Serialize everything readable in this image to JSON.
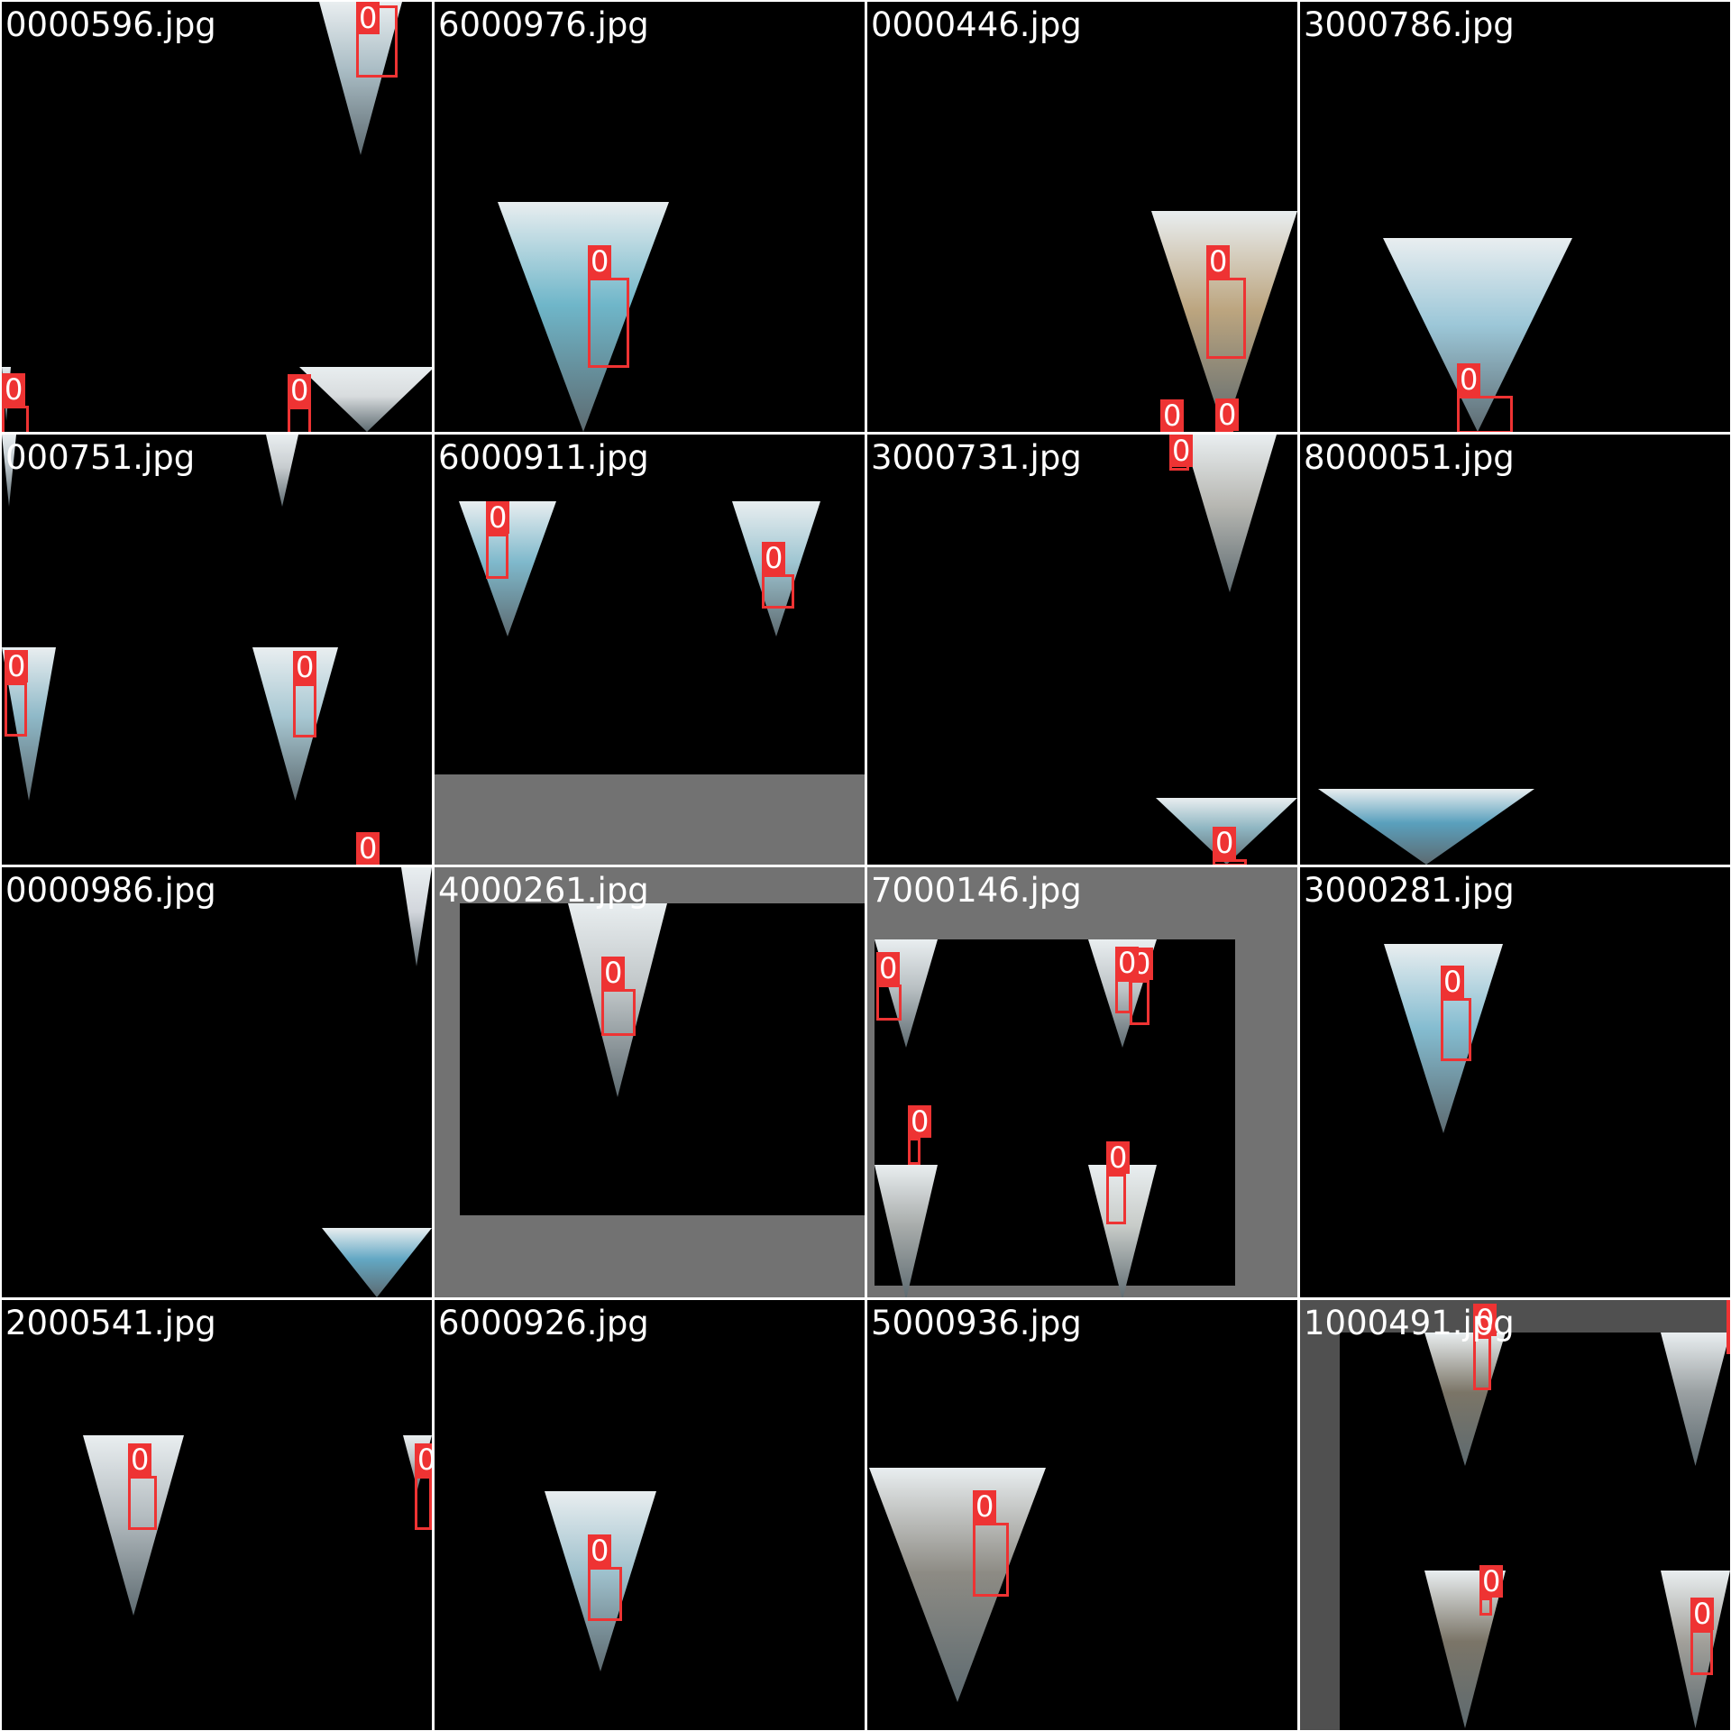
{
  "detection_class_label": "0",
  "colors": {
    "box": "#ee3333",
    "label_text": "#ffffff",
    "pad_gray": "#727272",
    "pad_dark": "#505050",
    "grid_line": "#ffffff"
  },
  "tiles": [
    {
      "filename": "0000596.jpg",
      "box_labels": [
        "0",
        "0",
        "0"
      ]
    },
    {
      "filename": "6000976.jpg",
      "box_labels": [
        "0"
      ]
    },
    {
      "filename": "0000446.jpg",
      "box_labels": [
        "0",
        "0",
        "0"
      ]
    },
    {
      "filename": "3000786.jpg",
      "box_labels": [
        "0"
      ]
    },
    {
      "filename": "000751.jpg",
      "box_labels": [
        "0",
        "0",
        "0"
      ]
    },
    {
      "filename": "6000911.jpg",
      "box_labels": [
        "0",
        "0"
      ]
    },
    {
      "filename": "3000731.jpg",
      "box_labels": [
        "0"
      ]
    },
    {
      "filename": "8000051.jpg",
      "box_labels": []
    },
    {
      "filename": "0000986.jpg",
      "box_labels": []
    },
    {
      "filename": "4000261.jpg",
      "box_labels": [
        "0"
      ]
    },
    {
      "filename": "7000146.jpg",
      "box_labels": [
        "0",
        "0",
        "0",
        "0",
        "0",
        "0"
      ]
    },
    {
      "filename": "3000281.jpg",
      "box_labels": [
        "0"
      ]
    },
    {
      "filename": "2000541.jpg",
      "box_labels": [
        "0",
        "0"
      ]
    },
    {
      "filename": "6000926.jpg",
      "box_labels": [
        "0"
      ]
    },
    {
      "filename": "5000936.jpg",
      "box_labels": [
        "0"
      ]
    },
    {
      "filename": "1000491.jpg",
      "box_labels": [
        "0",
        "0",
        "0",
        "0"
      ]
    }
  ]
}
